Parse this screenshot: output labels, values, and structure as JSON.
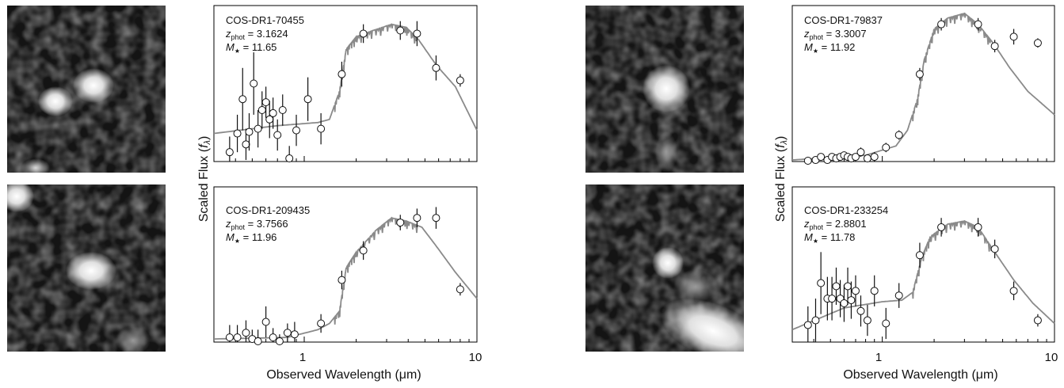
{
  "figure": {
    "xlabel": "Observed Wavelength (μm)",
    "ylabel_main": "Scaled Flux (",
    "ylabel_sym": "f",
    "ylabel_sub": "λ",
    "ylabel_close": ")",
    "xticks": [
      "1",
      "10"
    ],
    "z_symbol": "z",
    "z_sub": "phot",
    "m_symbol": "M",
    "m_sub": "★",
    "eq": " = ",
    "colors": {
      "model": "#8a8a8a",
      "points": "#111111",
      "frame": "#000000"
    }
  },
  "chart_data": [
    {
      "type": "scatter",
      "name": "COS-DR1-70455",
      "z_phot": "3.1624",
      "mass": "11.65",
      "xscale": "log",
      "xlim": [
        0.3,
        10
      ],
      "ylim": [
        0,
        1
      ],
      "xlabel": "Observed Wavelength (μm)",
      "ylabel": "Scaled Flux (fλ)",
      "points": [
        {
          "x": 0.37,
          "y": 0.06,
          "e": 0.1
        },
        {
          "x": 0.41,
          "y": 0.18,
          "e": 0.12
        },
        {
          "x": 0.44,
          "y": 0.4,
          "e": 0.2
        },
        {
          "x": 0.46,
          "y": 0.11,
          "e": 0.1
        },
        {
          "x": 0.48,
          "y": 0.19,
          "e": 0.12
        },
        {
          "x": 0.51,
          "y": 0.5,
          "e": 0.2
        },
        {
          "x": 0.54,
          "y": 0.21,
          "e": 0.12
        },
        {
          "x": 0.57,
          "y": 0.33,
          "e": 0.12
        },
        {
          "x": 0.6,
          "y": 0.38,
          "e": 0.1
        },
        {
          "x": 0.63,
          "y": 0.27,
          "e": 0.12
        },
        {
          "x": 0.66,
          "y": 0.31,
          "e": 0.1
        },
        {
          "x": 0.7,
          "y": 0.17,
          "e": 0.1
        },
        {
          "x": 0.75,
          "y": 0.33,
          "e": 0.1
        },
        {
          "x": 0.82,
          "y": 0.02,
          "e": 0.08
        },
        {
          "x": 0.9,
          "y": 0.2,
          "e": 0.1
        },
        {
          "x": 1.05,
          "y": 0.4,
          "e": 0.14
        },
        {
          "x": 1.25,
          "y": 0.21,
          "e": 0.1
        },
        {
          "x": 1.65,
          "y": 0.56,
          "e": 0.08
        },
        {
          "x": 2.2,
          "y": 0.82,
          "e": 0.06
        },
        {
          "x": 3.6,
          "y": 0.84,
          "e": 0.06
        },
        {
          "x": 4.5,
          "y": 0.82,
          "e": 0.08
        },
        {
          "x": 5.8,
          "y": 0.6,
          "e": 0.08
        },
        {
          "x": 8.0,
          "y": 0.52,
          "e": 0.04
        }
      ],
      "model": [
        [
          0.3,
          0.18
        ],
        [
          0.7,
          0.23
        ],
        [
          1.2,
          0.25
        ],
        [
          1.4,
          0.27
        ],
        [
          1.6,
          0.45
        ],
        [
          1.75,
          0.72
        ],
        [
          2.0,
          0.8
        ],
        [
          2.5,
          0.84
        ],
        [
          3.2,
          0.88
        ],
        [
          3.9,
          0.86
        ],
        [
          4.6,
          0.78
        ],
        [
          5.8,
          0.62
        ],
        [
          7.5,
          0.48
        ],
        [
          10,
          0.2
        ]
      ]
    },
    {
      "type": "scatter",
      "name": "COS-DR1-209435",
      "z_phot": "3.7566",
      "mass": "11.96",
      "xscale": "log",
      "xlim": [
        0.3,
        10
      ],
      "ylim": [
        0,
        1
      ],
      "xlabel": "Observed Wavelength (μm)",
      "ylabel": "Scaled Flux (fλ)",
      "points": [
        {
          "x": 0.37,
          "y": 0.03,
          "e": 0.08
        },
        {
          "x": 0.41,
          "y": 0.03,
          "e": 0.08
        },
        {
          "x": 0.46,
          "y": 0.06,
          "e": 0.08
        },
        {
          "x": 0.5,
          "y": 0.02,
          "e": 0.06
        },
        {
          "x": 0.54,
          "y": 0.0,
          "e": 0.08
        },
        {
          "x": 0.6,
          "y": 0.13,
          "e": 0.1
        },
        {
          "x": 0.66,
          "y": 0.03,
          "e": 0.06
        },
        {
          "x": 0.72,
          "y": 0.0,
          "e": 0.05
        },
        {
          "x": 0.8,
          "y": 0.06,
          "e": 0.06
        },
        {
          "x": 0.88,
          "y": 0.05,
          "e": 0.08
        },
        {
          "x": 1.25,
          "y": 0.12,
          "e": 0.06
        },
        {
          "x": 1.65,
          "y": 0.4,
          "e": 0.06
        },
        {
          "x": 2.2,
          "y": 0.59,
          "e": 0.06
        },
        {
          "x": 3.6,
          "y": 0.77,
          "e": 0.05
        },
        {
          "x": 4.5,
          "y": 0.8,
          "e": 0.06
        },
        {
          "x": 5.8,
          "y": 0.8,
          "e": 0.07
        },
        {
          "x": 8.0,
          "y": 0.34,
          "e": 0.04
        }
      ],
      "model": [
        [
          0.3,
          0.02
        ],
        [
          0.8,
          0.03
        ],
        [
          1.2,
          0.08
        ],
        [
          1.4,
          0.12
        ],
        [
          1.6,
          0.2
        ],
        [
          1.75,
          0.48
        ],
        [
          2.0,
          0.58
        ],
        [
          2.6,
          0.72
        ],
        [
          3.2,
          0.8
        ],
        [
          3.9,
          0.78
        ],
        [
          4.8,
          0.74
        ],
        [
          5.8,
          0.62
        ],
        [
          7.5,
          0.45
        ],
        [
          10,
          0.28
        ]
      ]
    },
    {
      "type": "scatter",
      "name": "COS-DR1-79837",
      "z_phot": "3.3007",
      "mass": "11.92",
      "xscale": "log",
      "xlim": [
        0.3,
        10
      ],
      "ylim": [
        0,
        1
      ],
      "xlabel": "Observed Wavelength (μm)",
      "ylabel": "Scaled Flux (fλ)",
      "points": [
        {
          "x": 0.37,
          "y": 0.0,
          "e": 0.02
        },
        {
          "x": 0.41,
          "y": 0.01,
          "e": 0.02
        },
        {
          "x": 0.44,
          "y": 0.03,
          "e": 0.02
        },
        {
          "x": 0.48,
          "y": 0.01,
          "e": 0.02
        },
        {
          "x": 0.51,
          "y": 0.03,
          "e": 0.02
        },
        {
          "x": 0.54,
          "y": 0.02,
          "e": 0.02
        },
        {
          "x": 0.57,
          "y": 0.03,
          "e": 0.02
        },
        {
          "x": 0.6,
          "y": 0.04,
          "e": 0.02
        },
        {
          "x": 0.63,
          "y": 0.03,
          "e": 0.02
        },
        {
          "x": 0.66,
          "y": 0.02,
          "e": 0.02
        },
        {
          "x": 0.7,
          "y": 0.03,
          "e": 0.02
        },
        {
          "x": 0.75,
          "y": 0.06,
          "e": 0.03
        },
        {
          "x": 0.82,
          "y": 0.02,
          "e": 0.02
        },
        {
          "x": 0.9,
          "y": 0.03,
          "e": 0.03
        },
        {
          "x": 1.05,
          "y": 0.09,
          "e": 0.03
        },
        {
          "x": 1.25,
          "y": 0.17,
          "e": 0.03
        },
        {
          "x": 1.65,
          "y": 0.56,
          "e": 0.04
        },
        {
          "x": 2.2,
          "y": 0.88,
          "e": 0.04
        },
        {
          "x": 3.6,
          "y": 0.88,
          "e": 0.04
        },
        {
          "x": 4.5,
          "y": 0.74,
          "e": 0.04
        },
        {
          "x": 5.8,
          "y": 0.8,
          "e": 0.05
        },
        {
          "x": 8.0,
          "y": 0.76,
          "e": 0.03
        }
      ],
      "model": [
        [
          0.3,
          0.01
        ],
        [
          0.8,
          0.04
        ],
        [
          1.2,
          0.1
        ],
        [
          1.4,
          0.2
        ],
        [
          1.6,
          0.4
        ],
        [
          1.75,
          0.65
        ],
        [
          2.0,
          0.85
        ],
        [
          2.4,
          0.92
        ],
        [
          3.0,
          0.95
        ],
        [
          3.6,
          0.88
        ],
        [
          4.4,
          0.76
        ],
        [
          5.5,
          0.6
        ],
        [
          7.0,
          0.45
        ],
        [
          10,
          0.3
        ]
      ]
    },
    {
      "type": "scatter",
      "name": "COS-DR1-233254",
      "z_phot": "2.8801",
      "mass": "11.78",
      "xscale": "log",
      "xlim": [
        0.3,
        10
      ],
      "ylim": [
        0,
        1
      ],
      "xlabel": "Observed Wavelength (μm)",
      "ylabel": "Scaled Flux (fλ)",
      "points": [
        {
          "x": 0.37,
          "y": 0.11,
          "e": 0.12
        },
        {
          "x": 0.41,
          "y": 0.14,
          "e": 0.14
        },
        {
          "x": 0.44,
          "y": 0.38,
          "e": 0.2
        },
        {
          "x": 0.48,
          "y": 0.28,
          "e": 0.14
        },
        {
          "x": 0.51,
          "y": 0.28,
          "e": 0.14
        },
        {
          "x": 0.54,
          "y": 0.36,
          "e": 0.12
        },
        {
          "x": 0.57,
          "y": 0.28,
          "e": 0.12
        },
        {
          "x": 0.6,
          "y": 0.25,
          "e": 0.12
        },
        {
          "x": 0.63,
          "y": 0.36,
          "e": 0.12
        },
        {
          "x": 0.66,
          "y": 0.27,
          "e": 0.12
        },
        {
          "x": 0.7,
          "y": 0.33,
          "e": 0.1
        },
        {
          "x": 0.75,
          "y": 0.2,
          "e": 0.1
        },
        {
          "x": 0.82,
          "y": 0.14,
          "e": 0.1
        },
        {
          "x": 0.9,
          "y": 0.33,
          "e": 0.1
        },
        {
          "x": 1.05,
          "y": 0.12,
          "e": 0.1
        },
        {
          "x": 1.25,
          "y": 0.3,
          "e": 0.08
        },
        {
          "x": 1.65,
          "y": 0.56,
          "e": 0.08
        },
        {
          "x": 2.2,
          "y": 0.74,
          "e": 0.06
        },
        {
          "x": 3.6,
          "y": 0.74,
          "e": 0.06
        },
        {
          "x": 4.5,
          "y": 0.6,
          "e": 0.06
        },
        {
          "x": 5.8,
          "y": 0.33,
          "e": 0.06
        },
        {
          "x": 8.0,
          "y": 0.14,
          "e": 0.04
        }
      ],
      "model": [
        [
          0.3,
          0.08
        ],
        [
          0.6,
          0.22
        ],
        [
          1.0,
          0.26
        ],
        [
          1.3,
          0.27
        ],
        [
          1.5,
          0.32
        ],
        [
          1.7,
          0.55
        ],
        [
          1.9,
          0.68
        ],
        [
          2.4,
          0.76
        ],
        [
          3.0,
          0.78
        ],
        [
          3.6,
          0.74
        ],
        [
          4.5,
          0.58
        ],
        [
          5.8,
          0.4
        ],
        [
          7.5,
          0.25
        ],
        [
          10,
          0.12
        ]
      ]
    }
  ]
}
